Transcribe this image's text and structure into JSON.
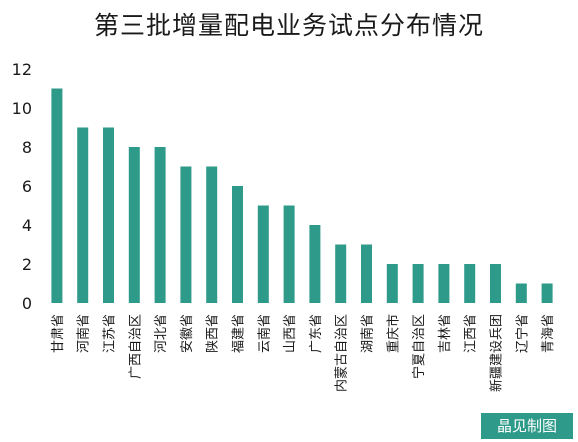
{
  "chart_data": {
    "type": "bar",
    "title": "第三批增量配电业务试点分布情况",
    "categories": [
      "甘肃省",
      "河南省",
      "江苏省",
      "广西自治区",
      "河北省",
      "安徽省",
      "陕西省",
      "福建省",
      "云南省",
      "山西省",
      "广东省",
      "内蒙古自治区",
      "湖南省",
      "重庆市",
      "宁夏自治区",
      "吉林省",
      "江西省",
      "新疆建设兵团",
      "辽宁省",
      "青海省"
    ],
    "values": [
      11,
      9,
      9,
      8,
      8,
      7,
      7,
      6,
      5,
      5,
      4,
      3,
      3,
      2,
      2,
      2,
      2,
      2,
      1,
      1
    ],
    "yticks": [
      "0",
      "2",
      "4",
      "6",
      "8",
      "10",
      "12"
    ],
    "ylim": [
      0,
      12
    ],
    "xlabel": "",
    "ylabel": "",
    "grid": false,
    "bar_color": "#2e9a8a"
  },
  "watermark": "晶见制图"
}
